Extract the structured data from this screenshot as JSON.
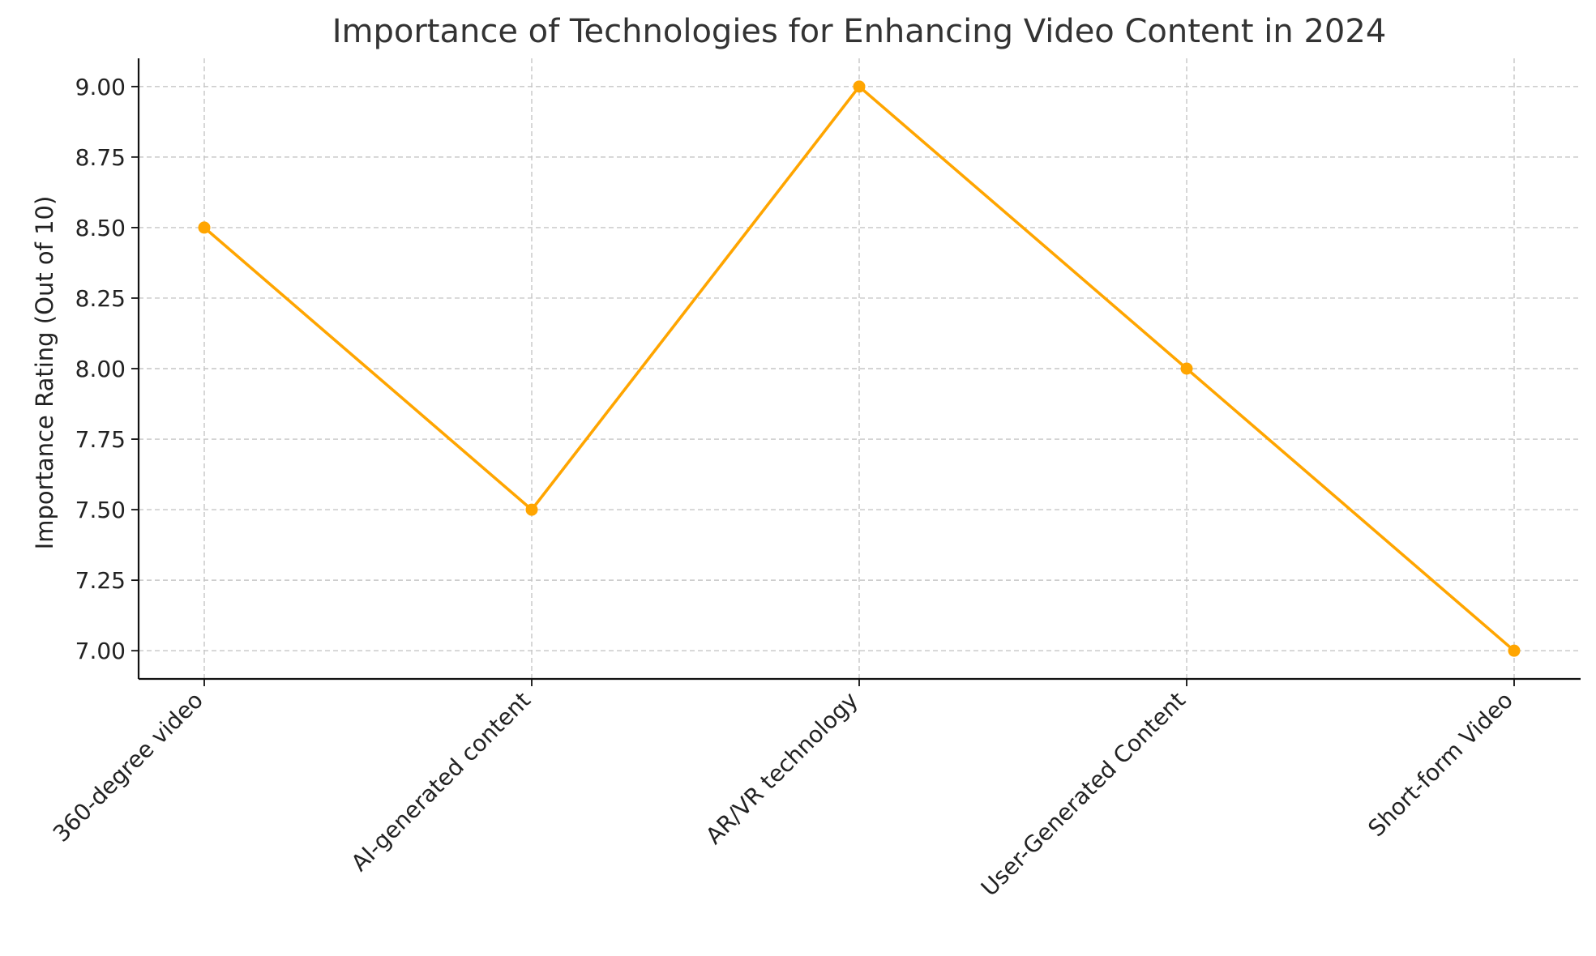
{
  "chart_data": {
    "type": "line",
    "title": "Importance of Technologies for Enhancing Video Content in 2024",
    "xlabel": "",
    "ylabel": "Importance Rating (Out of 10)",
    "categories": [
      "360-degree video",
      "AI-generated content",
      "AR/VR technology",
      "User-Generated Content",
      "Short-form Video"
    ],
    "series": [
      {
        "values": [
          8.5,
          7.5,
          9.0,
          8.0,
          7.0
        ],
        "color": "#FFA500"
      }
    ],
    "ylim": [
      6.9,
      9.1
    ],
    "yticks": [
      7.0,
      7.25,
      7.5,
      7.75,
      8.0,
      8.25,
      8.5,
      8.75,
      9.0
    ],
    "ytick_labels": [
      "7.00",
      "7.25",
      "7.50",
      "7.75",
      "8.00",
      "8.25",
      "8.50",
      "8.75",
      "9.00"
    ],
    "grid": true,
    "markers": "circle",
    "axes_color": "#111111",
    "grid_color": "#c6c6c6"
  }
}
